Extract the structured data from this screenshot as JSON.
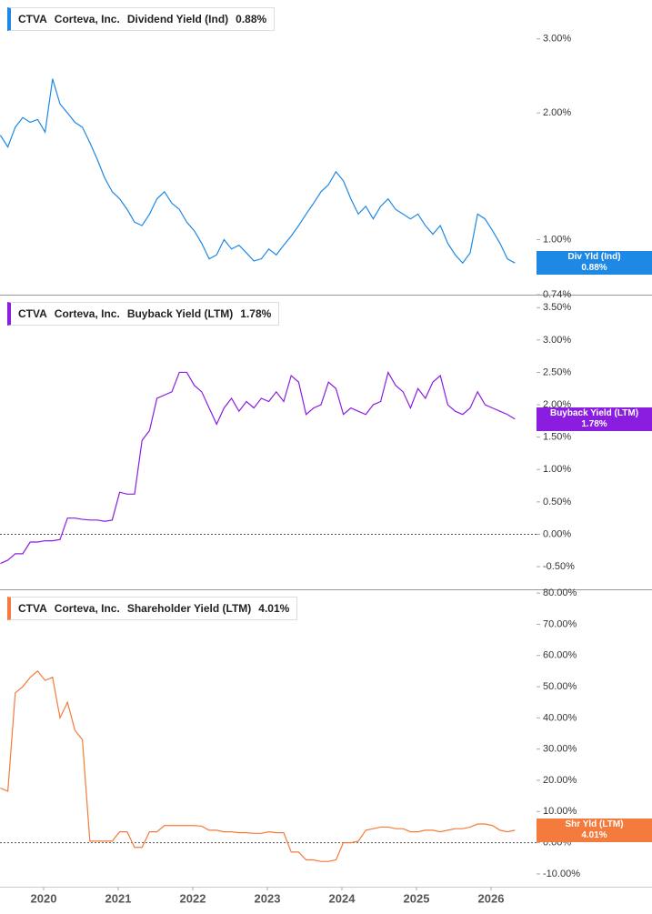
{
  "chart_data": [
    {
      "type": "line",
      "ticker": "CTVA",
      "company": "Corteva, Inc.",
      "metric": "Dividend Yield (Ind)",
      "value_label": "0.88%",
      "badge_label": "Div Yld (Ind)",
      "log_scale": true,
      "zero_line": false,
      "x": [
        2019.42,
        2019.52,
        2019.62,
        2019.72,
        2019.82,
        2019.92,
        2020.02,
        2020.12,
        2020.22,
        2020.32,
        2020.42,
        2020.52,
        2020.62,
        2020.72,
        2020.82,
        2020.92,
        2021.02,
        2021.12,
        2021.22,
        2021.32,
        2021.42,
        2021.52,
        2021.62,
        2021.72,
        2021.82,
        2021.92,
        2022.02,
        2022.12,
        2022.22,
        2022.32,
        2022.42,
        2022.52,
        2022.62,
        2022.72,
        2022.82,
        2022.92,
        2023.02,
        2023.12,
        2023.22,
        2023.32,
        2023.42,
        2023.52,
        2023.62,
        2023.72,
        2023.82,
        2023.92,
        2024.02,
        2024.12,
        2024.22,
        2024.32,
        2024.42,
        2024.52,
        2024.62,
        2024.72,
        2024.82,
        2024.92,
        2025.02,
        2025.12,
        2025.22,
        2025.32,
        2025.42,
        2025.52,
        2025.62,
        2025.72,
        2025.82,
        2025.92,
        2026.02,
        2026.12,
        2026.22,
        2026.32
      ],
      "series": [
        {
          "name": "Div Yld (Ind)",
          "color": "#1e88e5",
          "values": [
            1.77,
            1.66,
            1.85,
            1.95,
            1.9,
            1.93,
            1.8,
            2.41,
            2.1,
            2.0,
            1.9,
            1.85,
            1.7,
            1.55,
            1.4,
            1.3,
            1.25,
            1.18,
            1.1,
            1.08,
            1.15,
            1.25,
            1.3,
            1.22,
            1.18,
            1.1,
            1.05,
            0.98,
            0.9,
            0.92,
            1.0,
            0.95,
            0.97,
            0.93,
            0.89,
            0.9,
            0.95,
            0.92,
            0.97,
            1.02,
            1.08,
            1.15,
            1.22,
            1.3,
            1.35,
            1.45,
            1.38,
            1.25,
            1.15,
            1.2,
            1.12,
            1.2,
            1.25,
            1.18,
            1.15,
            1.12,
            1.15,
            1.08,
            1.03,
            1.08,
            0.98,
            0.92,
            0.88,
            0.93,
            1.15,
            1.12,
            1.05,
            0.98,
            0.9,
            0.88
          ]
        }
      ],
      "xlim": [
        2019.415,
        2026.61
      ],
      "ylim": [
        0.74,
        3.71
      ],
      "yticks": [
        {
          "value": 0.74,
          "label": "0.74%"
        },
        {
          "value": 1,
          "label": "1.00%"
        },
        {
          "value": 2,
          "label": "2.00%"
        },
        {
          "value": 3,
          "label": "3.00%"
        }
      ]
    },
    {
      "type": "line",
      "ticker": "CTVA",
      "company": "Corteva, Inc.",
      "metric": "Buyback Yield (LTM)",
      "value_label": "1.78%",
      "badge_label": "Buyback Yield (LTM)",
      "log_scale": false,
      "zero_line": true,
      "x": [
        2019.42,
        2019.52,
        2019.62,
        2019.72,
        2019.82,
        2019.92,
        2020.02,
        2020.12,
        2020.22,
        2020.32,
        2020.42,
        2020.52,
        2020.62,
        2020.72,
        2020.82,
        2020.92,
        2021.02,
        2021.12,
        2021.22,
        2021.32,
        2021.42,
        2021.52,
        2021.62,
        2021.72,
        2021.82,
        2021.92,
        2022.02,
        2022.12,
        2022.22,
        2022.32,
        2022.42,
        2022.52,
        2022.62,
        2022.72,
        2022.82,
        2022.92,
        2023.02,
        2023.12,
        2023.22,
        2023.32,
        2023.42,
        2023.52,
        2023.62,
        2023.72,
        2023.82,
        2023.92,
        2024.02,
        2024.12,
        2024.22,
        2024.32,
        2024.42,
        2024.52,
        2024.62,
        2024.72,
        2024.82,
        2024.92,
        2025.02,
        2025.12,
        2025.22,
        2025.32,
        2025.42,
        2025.52,
        2025.62,
        2025.72,
        2025.82,
        2025.92,
        2026.02,
        2026.12,
        2026.22,
        2026.32
      ],
      "series": [
        {
          "name": "Buyback Yield (LTM)",
          "color": "#8a1de0",
          "values": [
            -0.45,
            -0.4,
            -0.3,
            -0.3,
            -0.12,
            -0.12,
            -0.1,
            -0.1,
            -0.08,
            0.25,
            0.25,
            0.23,
            0.22,
            0.22,
            0.2,
            0.22,
            0.65,
            0.62,
            0.62,
            1.45,
            1.6,
            2.1,
            2.15,
            2.2,
            2.5,
            2.5,
            2.3,
            2.2,
            1.95,
            1.7,
            1.95,
            2.1,
            1.9,
            2.05,
            1.95,
            2.1,
            2.05,
            2.2,
            2.05,
            2.45,
            2.35,
            1.85,
            1.95,
            2.0,
            2.35,
            2.25,
            1.85,
            1.95,
            1.9,
            1.85,
            2.0,
            2.05,
            2.5,
            2.3,
            2.2,
            1.95,
            2.25,
            2.1,
            2.35,
            2.45,
            2.0,
            1.9,
            1.85,
            1.95,
            2.2,
            2.0,
            1.95,
            1.9,
            1.85,
            1.78
          ]
        }
      ],
      "xlim": [
        2019.415,
        2026.61
      ],
      "ylim": [
        -0.85,
        3.7
      ],
      "yticks": [
        {
          "value": -0.5,
          "label": "-0.50%"
        },
        {
          "value": 0,
          "label": "0.00%"
        },
        {
          "value": 0.5,
          "label": "0.50%"
        },
        {
          "value": 1,
          "label": "1.00%"
        },
        {
          "value": 1.5,
          "label": "1.50%"
        },
        {
          "value": 2,
          "label": "2.00%"
        },
        {
          "value": 2.5,
          "label": "2.50%"
        },
        {
          "value": 3,
          "label": "3.00%"
        },
        {
          "value": 3.5,
          "label": "3.50%"
        }
      ]
    },
    {
      "type": "line",
      "ticker": "CTVA",
      "company": "Corteva, Inc.",
      "metric": "Shareholder Yield (LTM)",
      "value_label": "4.01%",
      "badge_label": "Shr Yld (LTM)",
      "log_scale": false,
      "zero_line": true,
      "x": [
        2019.42,
        2019.52,
        2019.62,
        2019.72,
        2019.82,
        2019.92,
        2020.02,
        2020.12,
        2020.22,
        2020.32,
        2020.42,
        2020.52,
        2020.62,
        2020.72,
        2020.82,
        2020.92,
        2021.02,
        2021.12,
        2021.22,
        2021.32,
        2021.42,
        2021.52,
        2021.62,
        2021.72,
        2021.82,
        2021.92,
        2022.02,
        2022.12,
        2022.22,
        2022.32,
        2022.42,
        2022.52,
        2022.62,
        2022.72,
        2022.82,
        2022.92,
        2023.02,
        2023.12,
        2023.22,
        2023.32,
        2023.42,
        2023.52,
        2023.62,
        2023.72,
        2023.82,
        2023.92,
        2024.02,
        2024.12,
        2024.22,
        2024.32,
        2024.42,
        2024.52,
        2024.62,
        2024.72,
        2024.82,
        2024.92,
        2025.02,
        2025.12,
        2025.22,
        2025.32,
        2025.42,
        2025.52,
        2025.62,
        2025.72,
        2025.82,
        2025.92,
        2026.02,
        2026.12,
        2026.22,
        2026.32
      ],
      "series": [
        {
          "name": "Shr Yld (LTM)",
          "color": "#f47b3b",
          "values": [
            17.5,
            16.5,
            48,
            50,
            53,
            55,
            52,
            53,
            40,
            45,
            36,
            33,
            0.5,
            0.5,
            0.5,
            0.5,
            3.5,
            3.5,
            -1.5,
            -1.5,
            3.5,
            3.5,
            5.5,
            5.5,
            5.5,
            5.5,
            5.5,
            5.3,
            4,
            4,
            3.5,
            3.5,
            3.2,
            3.2,
            3,
            3,
            3.5,
            3.2,
            3.2,
            -3,
            -3,
            -5.5,
            -5.5,
            -6,
            -6,
            -5.5,
            0,
            0,
            0.5,
            4,
            4.5,
            5,
            5,
            4.5,
            4.5,
            3.5,
            3.5,
            4,
            4,
            3.5,
            4,
            4.5,
            4.5,
            5,
            6,
            6,
            5.5,
            4,
            3.5,
            4.01
          ]
        }
      ],
      "xlim": [
        2019.415,
        2026.61
      ],
      "ylim": [
        -14.1,
        81.2
      ],
      "xticks": [
        2020,
        2021,
        2022,
        2023,
        2024,
        2025,
        2026
      ],
      "yticks": [
        {
          "value": -10,
          "label": "-10.00%"
        },
        {
          "value": 0,
          "label": "0.00%"
        },
        {
          "value": 10,
          "label": "10.00%"
        },
        {
          "value": 20,
          "label": "20.00%"
        },
        {
          "value": 30,
          "label": "30.00%"
        },
        {
          "value": 40,
          "label": "40.00%"
        },
        {
          "value": 50,
          "label": "50.00%"
        },
        {
          "value": 60,
          "label": "60.00%"
        },
        {
          "value": 70,
          "label": "70.00%"
        },
        {
          "value": 80,
          "label": "80.00%"
        }
      ]
    }
  ]
}
